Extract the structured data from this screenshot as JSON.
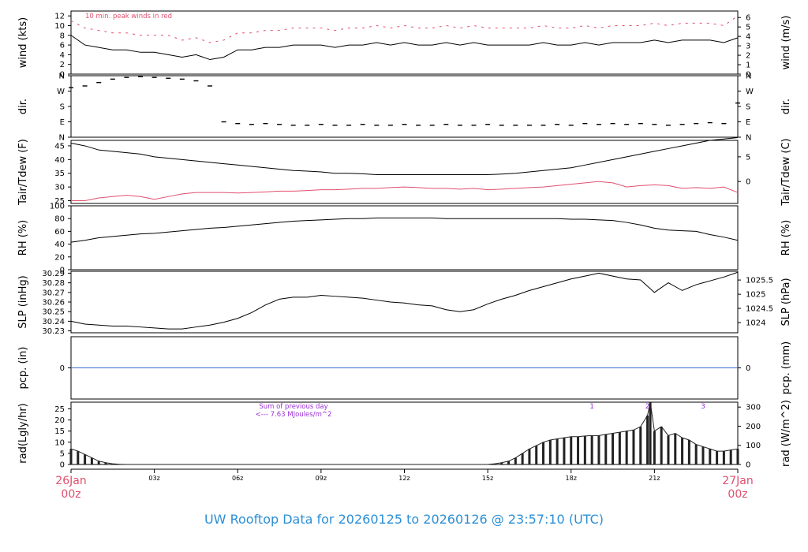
{
  "page": {
    "title": "UW Rooftop Data for 20260125  to  20260126 @ 23:57:10  (UTC)"
  },
  "colors": {
    "line": "#000000",
    "dewpoint": "#e0506e",
    "gust": "#e0506e",
    "precip": "#3a6fd8",
    "annotation": "#9b30d6",
    "date_label": "#e0506e",
    "title": "#2b8fd6"
  },
  "x_axis": {
    "ticks": [
      "03z",
      "06z",
      "09z",
      "12z",
      "15z",
      "18z",
      "21z"
    ],
    "start_label_top": "26Jan",
    "start_label_bottom": "00z",
    "end_label_top": "27Jan",
    "end_label_bottom": "00z"
  },
  "chart_data": [
    {
      "type": "line",
      "id": "wind",
      "ylabel": "wind (kts)",
      "ylabel_right": "wind (m/s)",
      "ylim": [
        0,
        13
      ],
      "yticks": [
        0,
        2,
        4,
        6,
        8,
        10,
        12
      ],
      "yticks_right": [
        "0",
        "1",
        "2",
        "3",
        "4",
        "5",
        "6"
      ],
      "yticks_right_values": [
        0,
        1.944,
        3.888,
        5.832,
        7.776,
        9.72,
        11.664
      ],
      "annotation": "10 min. peak winds in red",
      "x_hours": [
        0,
        0.5,
        1,
        1.5,
        2,
        2.5,
        3,
        3.5,
        4,
        4.5,
        5,
        5.5,
        6,
        6.5,
        7,
        7.5,
        8,
        8.5,
        9,
        9.5,
        10,
        10.5,
        11,
        11.5,
        12,
        12.5,
        13,
        13.5,
        14,
        14.5,
        15,
        15.5,
        16,
        16.5,
        17,
        17.5,
        18,
        18.5,
        19,
        19.5,
        20,
        20.5,
        21,
        21.5,
        22,
        22.5,
        23,
        23.5,
        24
      ],
      "series": [
        {
          "values": [
            8,
            6,
            5.5,
            5,
            5,
            4.5,
            4.5,
            4,
            3.5,
            4,
            3,
            3.5,
            5,
            5,
            5.5,
            5.5,
            6,
            6,
            6,
            5.5,
            6,
            6,
            6.5,
            6,
            6.5,
            6,
            6,
            6.5,
            6,
            6.5,
            6,
            6,
            6,
            6,
            6.5,
            6,
            6,
            6.5,
            6,
            6.5,
            6.5,
            6.5,
            7,
            6.5,
            7,
            7,
            7,
            6.5,
            7.5
          ]
        },
        {
          "values": [
            11,
            9.5,
            9,
            8.5,
            8.5,
            8,
            8,
            8,
            7,
            7.5,
            6.5,
            7,
            8.5,
            8.5,
            9,
            9,
            9.5,
            9.5,
            9.5,
            9,
            9.5,
            9.5,
            10,
            9.5,
            10,
            9.5,
            9.5,
            10,
            9.5,
            10,
            9.5,
            9.5,
            9.5,
            9.5,
            10,
            9.5,
            9.5,
            10,
            9.5,
            10,
            10,
            10,
            10.5,
            10,
            10.5,
            10.5,
            10.5,
            10,
            12
          ]
        }
      ]
    },
    {
      "type": "scatter",
      "id": "dir",
      "ylabel": "dir.",
      "ylabel_right": "dir.",
      "ylim": [
        0,
        360
      ],
      "yticks": [
        0,
        90,
        180,
        270,
        360
      ],
      "ytick_labels": [
        "N",
        "E",
        "S",
        "W",
        "N"
      ],
      "x_hours": [
        0,
        0.5,
        1,
        1.5,
        2,
        2.5,
        3,
        3.5,
        4,
        4.5,
        5,
        5.5,
        6,
        6.5,
        7,
        7.5,
        8,
        8.5,
        9,
        9.5,
        10,
        10.5,
        11,
        11.5,
        12,
        12.5,
        13,
        13.5,
        14,
        14.5,
        15,
        15.5,
        16,
        16.5,
        17,
        17.5,
        18,
        18.5,
        19,
        19.5,
        20,
        20.5,
        21,
        21.5,
        22,
        22.5,
        23,
        23.5,
        24
      ],
      "values": [
        290,
        300,
        320,
        340,
        350,
        355,
        350,
        345,
        340,
        330,
        300,
        90,
        80,
        75,
        80,
        75,
        70,
        70,
        75,
        70,
        70,
        75,
        70,
        70,
        75,
        70,
        70,
        75,
        70,
        70,
        75,
        70,
        70,
        70,
        70,
        75,
        70,
        80,
        75,
        80,
        75,
        80,
        75,
        70,
        75,
        80,
        85,
        80,
        200
      ]
    },
    {
      "type": "line",
      "id": "temp",
      "ylabel": "Tair/Tdew (F)",
      "ylabel_right": "Tair/Tdew (C)",
      "ylim": [
        24,
        47
      ],
      "yticks": [
        25,
        30,
        35,
        40,
        45
      ],
      "yticks_right": [
        "0",
        "5"
      ],
      "yticks_right_values": [
        32,
        41
      ],
      "x_hours": [
        0,
        0.5,
        1,
        1.5,
        2,
        2.5,
        3,
        3.5,
        4,
        4.5,
        5,
        5.5,
        6,
        6.5,
        7,
        7.5,
        8,
        8.5,
        9,
        9.5,
        10,
        10.5,
        11,
        11.5,
        12,
        12.5,
        13,
        13.5,
        14,
        14.5,
        15,
        15.5,
        16,
        16.5,
        17,
        17.5,
        18,
        18.5,
        19,
        19.5,
        20,
        20.5,
        21,
        21.5,
        22,
        22.5,
        23,
        23.5,
        24
      ],
      "series": [
        {
          "values": [
            46,
            45,
            43.5,
            43,
            42.5,
            42,
            41,
            40.5,
            40,
            39.5,
            39,
            38.5,
            38,
            37.5,
            37,
            36.5,
            36,
            35.8,
            35.5,
            35,
            35,
            34.8,
            34.5,
            34.5,
            34.5,
            34.5,
            34.5,
            34.5,
            34.5,
            34.5,
            34.5,
            34.7,
            35,
            35.5,
            36,
            36.5,
            37,
            38,
            39,
            40,
            41,
            42,
            43,
            44,
            45,
            46,
            47,
            47.5,
            48
          ]
        },
        {
          "values": [
            25,
            25,
            26,
            26.5,
            27,
            26.5,
            25.5,
            26.5,
            27.5,
            28,
            28,
            28,
            27.8,
            28,
            28.2,
            28.5,
            28.5,
            28.7,
            29,
            29,
            29.2,
            29.5,
            29.5,
            29.8,
            30,
            29.8,
            29.5,
            29.5,
            29.2,
            29.5,
            29,
            29.2,
            29.5,
            29.8,
            30,
            30.5,
            31,
            31.5,
            32,
            31.5,
            30,
            30.5,
            30.8,
            30.5,
            29.5,
            29.8,
            29.5,
            30,
            28
          ]
        }
      ]
    },
    {
      "type": "line",
      "id": "rh",
      "ylabel": "RH (%)",
      "ylabel_right": "RH (%)",
      "ylim": [
        0,
        100
      ],
      "yticks": [
        0,
        20,
        40,
        60,
        80,
        100
      ],
      "x_hours": [
        0,
        0.5,
        1,
        1.5,
        2,
        2.5,
        3,
        3.5,
        4,
        4.5,
        5,
        5.5,
        6,
        6.5,
        7,
        7.5,
        8,
        8.5,
        9,
        9.5,
        10,
        10.5,
        11,
        11.5,
        12,
        12.5,
        13,
        13.5,
        14,
        14.5,
        15,
        15.5,
        16,
        16.5,
        17,
        17.5,
        18,
        18.5,
        19,
        19.5,
        20,
        20.5,
        21,
        21.5,
        22,
        22.5,
        23,
        23.5,
        24
      ],
      "values": [
        43,
        46,
        50,
        52,
        54,
        56,
        57,
        59,
        61,
        63,
        65,
        66,
        68,
        70,
        72,
        74,
        76,
        77,
        78,
        79,
        80,
        80,
        81,
        81,
        81,
        81,
        81,
        80,
        80,
        80,
        80,
        80,
        80,
        80,
        80,
        80,
        79,
        79,
        78,
        77,
        74,
        70,
        65,
        62,
        61,
        60,
        55,
        51,
        46
      ]
    },
    {
      "type": "line",
      "id": "slp",
      "ylabel": "SLP (inHg)",
      "ylabel_right": "SLP (hPa)",
      "ylim": [
        30.228,
        30.292
      ],
      "yticks": [
        30.23,
        30.24,
        30.25,
        30.26,
        30.27,
        30.28,
        30.29
      ],
      "yticks_right": [
        "1024",
        "1024.5",
        "1025",
        "1025.5"
      ],
      "yticks_right_values": [
        30.2386,
        30.2534,
        30.2681,
        30.2829
      ],
      "x_hours": [
        0,
        0.5,
        1,
        1.5,
        2,
        2.5,
        3,
        3.5,
        4,
        4.5,
        5,
        5.5,
        6,
        6.5,
        7,
        7.5,
        8,
        8.5,
        9,
        9.5,
        10,
        10.5,
        11,
        11.5,
        12,
        12.5,
        13,
        13.5,
        14,
        14.5,
        15,
        15.5,
        16,
        16.5,
        17,
        17.5,
        18,
        18.5,
        19,
        19.5,
        20,
        20.5,
        21,
        21.5,
        22,
        22.5,
        23,
        23.5,
        24
      ],
      "values": [
        30.24,
        30.237,
        30.236,
        30.235,
        30.235,
        30.234,
        30.233,
        30.232,
        30.232,
        30.234,
        30.236,
        30.239,
        30.243,
        30.249,
        30.257,
        30.263,
        30.265,
        30.265,
        30.267,
        30.266,
        30.265,
        30.264,
        30.262,
        30.26,
        30.259,
        30.257,
        30.256,
        30.252,
        30.25,
        30.252,
        30.258,
        30.263,
        30.267,
        30.272,
        30.276,
        30.28,
        30.284,
        30.287,
        30.29,
        30.287,
        30.284,
        30.283,
        30.27,
        30.28,
        30.272,
        30.278,
        30.282,
        30.286,
        30.291
      ]
    },
    {
      "type": "line",
      "id": "pcp",
      "ylabel": "pcp. (in)",
      "ylabel_right": "pcp. (mm)",
      "ylim": [
        -0.1,
        0.1
      ],
      "yticks": [
        0
      ],
      "yticks_right": [
        "0"
      ],
      "yticks_right_values": [
        0
      ],
      "x_hours": [
        0,
        24
      ],
      "values": [
        0,
        0
      ]
    },
    {
      "type": "bar",
      "id": "rad",
      "ylabel": "rad(Lgly/hr)",
      "ylabel_right": "rad (W/m^2)",
      "ylim": [
        0,
        28
      ],
      "yticks": [
        0,
        5,
        10,
        15,
        20,
        25
      ],
      "yticks_right": [
        "0",
        "100",
        "200",
        "300"
      ],
      "yticks_right_values": [
        0,
        8.6,
        17.2,
        25.8
      ],
      "annotation_line1": "Sum of previous day",
      "annotation_line2": "<--- 7.63 MJoules/m^2",
      "markers": [
        "1",
        "2",
        "3"
      ],
      "marker_hours": [
        18.75,
        20.75,
        22.75
      ],
      "x_hours": [
        0,
        0.25,
        0.5,
        0.75,
        1,
        1.25,
        1.5,
        1.75,
        2,
        15,
        15.25,
        15.5,
        15.75,
        16,
        16.25,
        16.5,
        16.75,
        17,
        17.25,
        17.5,
        17.75,
        18,
        18.25,
        18.5,
        18.75,
        19,
        19.25,
        19.5,
        19.75,
        20,
        20.25,
        20.5,
        20.75,
        20.85,
        21,
        21.25,
        21.5,
        21.75,
        22,
        22.25,
        22.5,
        22.75,
        23,
        23.25,
        23.5,
        23.75,
        24
      ],
      "values": [
        7,
        6,
        4.5,
        3,
        1.5,
        0.8,
        0.3,
        0.1,
        0,
        0,
        0.3,
        0.8,
        1.5,
        3,
        5,
        7,
        8.5,
        10,
        11,
        11.5,
        12,
        12.5,
        12.5,
        12.8,
        13,
        13,
        13.5,
        14,
        14.5,
        15,
        15.5,
        17,
        22,
        28,
        15,
        17,
        13,
        14,
        12,
        11,
        9,
        8,
        7,
        6,
        6,
        6.5,
        7
      ]
    }
  ]
}
